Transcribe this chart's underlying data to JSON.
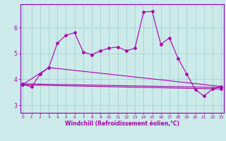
{
  "xlabel": "Windchill (Refroidissement éolien,°C)",
  "background_color": "#cceaea",
  "grid_color": "#aad4d4",
  "line_color": "#aa00aa",
  "spine_color": "#8800aa",
  "x_ticks": [
    0,
    1,
    2,
    3,
    4,
    5,
    6,
    7,
    8,
    9,
    10,
    11,
    12,
    13,
    14,
    15,
    16,
    17,
    18,
    19,
    20,
    21,
    22,
    23
  ],
  "y_ticks": [
    3,
    4,
    5,
    6
  ],
  "xlim": [
    -0.3,
    23.3
  ],
  "ylim": [
    2.7,
    6.9
  ],
  "series1_x": [
    0,
    1,
    2,
    3,
    4,
    5,
    6,
    7,
    8,
    9,
    10,
    11,
    12,
    13,
    14,
    15,
    16,
    17,
    18,
    19,
    20,
    21,
    22,
    23
  ],
  "series1_y": [
    3.8,
    3.7,
    4.2,
    4.45,
    5.4,
    5.7,
    5.8,
    5.05,
    4.95,
    5.1,
    5.2,
    5.25,
    5.1,
    5.2,
    6.6,
    6.62,
    5.35,
    5.6,
    4.8,
    4.2,
    3.6,
    3.35,
    3.62,
    3.72
  ],
  "series2_x": [
    0,
    3,
    23
  ],
  "series2_y": [
    3.8,
    4.45,
    3.72
  ],
  "series3_x": [
    0,
    23
  ],
  "series3_y": [
    3.82,
    3.68
  ],
  "series4_x": [
    0,
    23
  ],
  "series4_y": [
    3.78,
    3.62
  ]
}
